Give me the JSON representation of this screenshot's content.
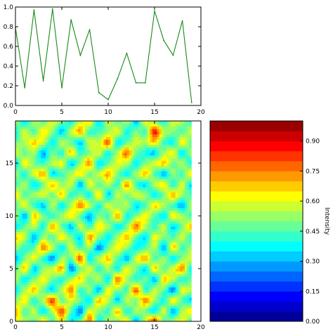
{
  "chart_data": [
    {
      "type": "line",
      "x": [
        0,
        1,
        2,
        3,
        4,
        5,
        6,
        7,
        8,
        9,
        10,
        11,
        12,
        13,
        14,
        15,
        16,
        17,
        18,
        19
      ],
      "values": [
        0.79,
        0.18,
        0.97,
        0.25,
        0.98,
        0.18,
        0.87,
        0.51,
        0.77,
        0.13,
        0.06,
        0.27,
        0.53,
        0.23,
        0.23,
        0.96,
        0.66,
        0.51,
        0.86,
        0.03
      ],
      "xlim": [
        0,
        20
      ],
      "ylim": [
        0,
        1.0
      ],
      "xticks": [
        "0",
        "5",
        "10",
        "15",
        "20"
      ],
      "yticks": [
        "0.0",
        "0.2",
        "0.4",
        "0.6",
        "0.8",
        "1.0"
      ],
      "line_color": "#1a8a1a",
      "grid": false
    },
    {
      "type": "heatmap",
      "style": "filled-contour",
      "colormap": "jet",
      "xlim": [
        0,
        19
      ],
      "ylim": [
        0,
        19
      ],
      "xticks": [
        "0",
        "5",
        "10",
        "15",
        "20"
      ],
      "yticks": [
        "0",
        "5",
        "10",
        "15"
      ],
      "z": [
        [
          0.62,
          0.55,
          0.45,
          0.72,
          0.4,
          0.66,
          0.3,
          0.52,
          0.8,
          0.35,
          0.58,
          0.48,
          0.7,
          0.25,
          0.6,
          0.9,
          0.42,
          0.55,
          0.65,
          0.38
        ],
        [
          0.75,
          0.42,
          0.6,
          0.3,
          0.55,
          0.85,
          0.45,
          0.2,
          0.65,
          0.5,
          0.4,
          0.72,
          0.35,
          0.58,
          0.48,
          0.3,
          0.62,
          0.25,
          0.55,
          0.7
        ],
        [
          0.5,
          0.68,
          0.35,
          0.58,
          0.88,
          0.4,
          0.62,
          0.5,
          0.3,
          0.75,
          0.55,
          0.28,
          0.6,
          0.45,
          0.8,
          0.52,
          0.35,
          0.7,
          0.42,
          0.3
        ],
        [
          0.35,
          0.55,
          0.72,
          0.45,
          0.3,
          0.6,
          0.78,
          0.38,
          0.55,
          0.25,
          0.68,
          0.5,
          0.42,
          0.85,
          0.35,
          0.6,
          0.48,
          0.2,
          0.65,
          0.55
        ],
        [
          0.6,
          0.3,
          0.5,
          0.65,
          0.48,
          0.35,
          0.55,
          0.7,
          0.45,
          0.6,
          0.3,
          0.82,
          0.55,
          0.38,
          0.5,
          0.25,
          0.7,
          0.58,
          0.35,
          0.48
        ],
        [
          0.45,
          0.72,
          0.28,
          0.52,
          0.6,
          0.75,
          0.2,
          0.48,
          0.62,
          0.4,
          0.55,
          0.35,
          0.65,
          0.5,
          0.28,
          0.72,
          0.45,
          0.6,
          0.8,
          0.3
        ],
        [
          0.28,
          0.5,
          0.65,
          0.4,
          0.22,
          0.55,
          0.45,
          0.85,
          0.3,
          0.58,
          0.7,
          0.45,
          0.25,
          0.6,
          0.75,
          0.4,
          0.55,
          0.3,
          0.5,
          0.62
        ],
        [
          0.55,
          0.38,
          0.45,
          0.8,
          0.58,
          0.3,
          0.62,
          0.4,
          0.55,
          0.2,
          0.48,
          0.65,
          0.52,
          0.35,
          0.45,
          0.58,
          0.25,
          0.72,
          0.4,
          0.55
        ],
        [
          0.7,
          0.6,
          0.25,
          0.55,
          0.42,
          0.68,
          0.5,
          0.3,
          0.78,
          0.5,
          0.35,
          0.55,
          0.72,
          0.45,
          0.3,
          0.65,
          0.5,
          0.45,
          0.6,
          0.35
        ],
        [
          0.32,
          0.48,
          0.58,
          0.35,
          0.75,
          0.45,
          0.28,
          0.62,
          0.4,
          0.68,
          0.55,
          0.3,
          0.48,
          0.82,
          0.55,
          0.38,
          0.62,
          0.28,
          0.5,
          0.72
        ],
        [
          0.58,
          0.25,
          0.72,
          0.5,
          0.38,
          0.55,
          0.68,
          0.45,
          0.25,
          0.52,
          0.4,
          0.75,
          0.35,
          0.5,
          0.65,
          0.45,
          0.3,
          0.68,
          0.55,
          0.4
        ],
        [
          0.45,
          0.65,
          0.4,
          0.28,
          0.6,
          0.32,
          0.55,
          0.78,
          0.58,
          0.35,
          0.62,
          0.48,
          0.58,
          0.3,
          0.42,
          0.7,
          0.55,
          0.4,
          0.25,
          0.6
        ],
        [
          0.68,
          0.42,
          0.55,
          0.62,
          0.45,
          0.7,
          0.38,
          0.5,
          0.35,
          0.72,
          0.28,
          0.6,
          0.45,
          0.62,
          0.55,
          0.32,
          0.48,
          0.75,
          0.52,
          0.45
        ],
        [
          0.4,
          0.58,
          0.3,
          0.48,
          0.72,
          0.5,
          0.6,
          0.25,
          0.65,
          0.45,
          0.55,
          0.38,
          0.8,
          0.4,
          0.3,
          0.58,
          0.68,
          0.35,
          0.62,
          0.28
        ],
        [
          0.55,
          0.35,
          0.62,
          0.75,
          0.3,
          0.42,
          0.55,
          0.68,
          0.45,
          0.58,
          0.75,
          0.5,
          0.3,
          0.55,
          0.72,
          0.45,
          0.25,
          0.55,
          0.4,
          0.7
        ],
        [
          0.3,
          0.68,
          0.48,
          0.4,
          0.58,
          0.65,
          0.28,
          0.52,
          0.78,
          0.3,
          0.45,
          0.62,
          0.55,
          0.35,
          0.5,
          0.6,
          0.72,
          0.45,
          0.58,
          0.35
        ],
        [
          0.62,
          0.45,
          0.55,
          0.25,
          0.5,
          0.38,
          0.72,
          0.4,
          0.5,
          0.62,
          0.35,
          0.55,
          0.82,
          0.48,
          0.38,
          0.28,
          0.55,
          0.65,
          0.3,
          0.55
        ],
        [
          0.48,
          0.55,
          0.7,
          0.58,
          0.35,
          0.6,
          0.45,
          0.3,
          0.62,
          0.55,
          0.85,
          0.3,
          0.45,
          0.6,
          0.55,
          0.7,
          0.4,
          0.35,
          0.68,
          0.45
        ],
        [
          0.35,
          0.62,
          0.4,
          0.68,
          0.52,
          0.28,
          0.58,
          0.75,
          0.38,
          0.45,
          0.5,
          0.65,
          0.35,
          0.52,
          0.4,
          0.92,
          0.58,
          0.5,
          0.42,
          0.6
        ],
        [
          0.55,
          0.3,
          0.58,
          0.45,
          0.62,
          0.5,
          0.35,
          0.55,
          0.7,
          0.3,
          0.6,
          0.42,
          0.58,
          0.28,
          0.65,
          0.5,
          0.35,
          0.62,
          0.55,
          0.4
        ]
      ]
    },
    {
      "type": "colorbar",
      "colormap": "jet",
      "range": [
        0.0,
        1.0
      ],
      "levels": 20,
      "ticks": [
        "0.00",
        "0.15",
        "0.30",
        "0.45",
        "0.60",
        "0.75",
        "0.90"
      ],
      "label": "Intensity"
    }
  ]
}
